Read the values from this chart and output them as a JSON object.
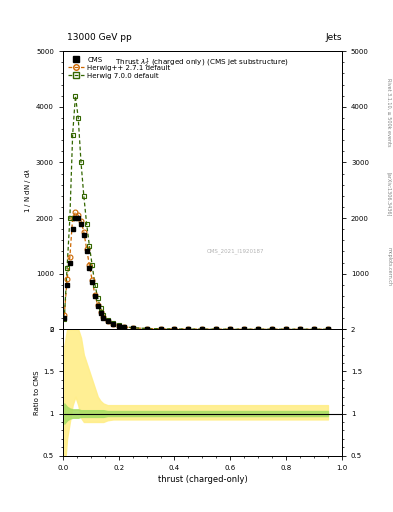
{
  "title_top": "13000 GeV pp",
  "title_right": "Jets",
  "plot_title": "Thrust $\\lambda_2^1$ (charged only) (CMS jet substructure)",
  "xlabel": "thrust (charged-only)",
  "ylabel": "$\\frac{1}{\\mathrm{N}} \\, / \\, \\frac{\\mathrm{d}\\mathrm{N}}{\\mathrm{d}\\lambda}$",
  "ylabel_ratio": "Ratio to CMS",
  "watermark": "CMS_2021_I1920187",
  "rivet_label": "Rivet 3.1.10, ≥ 500k events",
  "arxiv_label": "[arXiv:1306.3436]",
  "mcplots_label": "mcplots.cern.ch",
  "cms_x": [
    0.005,
    0.015,
    0.025,
    0.035,
    0.045,
    0.055,
    0.065,
    0.075,
    0.085,
    0.095,
    0.105,
    0.115,
    0.125,
    0.135,
    0.145,
    0.16,
    0.18,
    0.2,
    0.22,
    0.25,
    0.3,
    0.35,
    0.4,
    0.45,
    0.5,
    0.55,
    0.6,
    0.65,
    0.7,
    0.75,
    0.8,
    0.85,
    0.9,
    0.95
  ],
  "cms_y": [
    200,
    800,
    1200,
    1800,
    2000,
    2000,
    1900,
    1700,
    1400,
    1100,
    850,
    600,
    420,
    300,
    210,
    140,
    90,
    60,
    40,
    25,
    12,
    7,
    4.5,
    3,
    2,
    1.5,
    1.2,
    1.0,
    0.9,
    0.8,
    0.75,
    0.7,
    0.6,
    0.5
  ],
  "herwig271_x": [
    0.005,
    0.015,
    0.025,
    0.035,
    0.045,
    0.055,
    0.065,
    0.075,
    0.085,
    0.095,
    0.105,
    0.115,
    0.125,
    0.135,
    0.145,
    0.16,
    0.18,
    0.2,
    0.22,
    0.25,
    0.3,
    0.35,
    0.4,
    0.45,
    0.5,
    0.55,
    0.6,
    0.65,
    0.7,
    0.75,
    0.8,
    0.85,
    0.9,
    0.95
  ],
  "herwig271_y": [
    250,
    900,
    1300,
    2000,
    2100,
    2050,
    1950,
    1750,
    1450,
    1150,
    880,
    620,
    430,
    310,
    215,
    145,
    92,
    62,
    42,
    26,
    13,
    7.5,
    5,
    3.2,
    2.1,
    1.6,
    1.3,
    1.1,
    0.95,
    0.85,
    0.78,
    0.72,
    0.62,
    0.52
  ],
  "herwig700_x": [
    0.005,
    0.015,
    0.025,
    0.035,
    0.045,
    0.055,
    0.065,
    0.075,
    0.085,
    0.095,
    0.105,
    0.115,
    0.125,
    0.135,
    0.145,
    0.16,
    0.18,
    0.2,
    0.22,
    0.25,
    0.3,
    0.35,
    0.4,
    0.45,
    0.5,
    0.55,
    0.6,
    0.65,
    0.7,
    0.75,
    0.8,
    0.85,
    0.9,
    0.95
  ],
  "herwig700_y": [
    180,
    1100,
    2000,
    3500,
    4200,
    3800,
    3000,
    2400,
    1900,
    1500,
    1150,
    800,
    560,
    380,
    260,
    170,
    105,
    70,
    47,
    29,
    14,
    8.5,
    5.5,
    3.5,
    2.3,
    1.7,
    1.35,
    1.1,
    0.98,
    0.88,
    0.82,
    0.74,
    0.64,
    0.54
  ],
  "ylim_main": [
    0,
    5000
  ],
  "ylim_ratio": [
    0.5,
    2.0
  ],
  "xlim": [
    0.0,
    1.0
  ],
  "cms_color": "#000000",
  "herwig271_color": "#cc6600",
  "herwig700_color": "#336600",
  "herwig271_band_color": "#ffee88",
  "herwig700_band_color": "#aade66",
  "ratio_x": [
    0.005,
    0.015,
    0.025,
    0.035,
    0.045,
    0.055,
    0.065,
    0.075,
    0.085,
    0.095,
    0.105,
    0.115,
    0.125,
    0.135,
    0.145,
    0.16,
    0.18,
    0.2,
    0.22,
    0.25,
    0.3,
    0.35,
    0.4,
    0.45,
    0.5,
    0.55,
    0.6,
    0.65,
    0.7,
    0.75,
    0.8,
    0.85,
    0.9,
    0.95
  ],
  "ratio_h271_low": [
    0.88,
    0.92,
    0.94,
    0.95,
    0.95,
    0.95,
    0.96,
    0.96,
    0.96,
    0.96,
    0.96,
    0.96,
    0.96,
    0.96,
    0.96,
    0.97,
    0.97,
    0.97,
    0.97,
    0.97,
    0.97,
    0.97,
    0.97,
    0.97,
    0.97,
    0.97,
    0.97,
    0.97,
    0.97,
    0.97,
    0.97,
    0.97,
    0.97,
    0.97
  ],
  "ratio_h271_high": [
    1.12,
    1.08,
    1.06,
    1.05,
    1.05,
    1.05,
    1.04,
    1.04,
    1.04,
    1.04,
    1.04,
    1.04,
    1.04,
    1.04,
    1.04,
    1.03,
    1.03,
    1.03,
    1.03,
    1.03,
    1.03,
    1.03,
    1.03,
    1.03,
    1.03,
    1.03,
    1.03,
    1.03,
    1.03,
    1.03,
    1.03,
    1.03,
    1.03,
    1.03
  ],
  "ratio_h700_low": [
    0.3,
    0.7,
    0.9,
    1.1,
    1.2,
    1.1,
    0.95,
    0.9,
    0.9,
    0.9,
    0.9,
    0.9,
    0.9,
    0.9,
    0.9,
    0.92,
    0.93,
    0.93,
    0.93,
    0.93,
    0.93,
    0.93,
    0.93,
    0.93,
    0.93,
    0.93,
    0.93,
    0.93,
    0.93,
    0.93,
    0.93,
    0.93,
    0.93,
    0.93
  ],
  "ratio_h700_high": [
    1.8,
    2.0,
    2.0,
    2.0,
    2.0,
    2.0,
    1.9,
    1.7,
    1.6,
    1.5,
    1.4,
    1.3,
    1.2,
    1.15,
    1.12,
    1.1,
    1.1,
    1.1,
    1.1,
    1.1,
    1.1,
    1.1,
    1.1,
    1.1,
    1.1,
    1.1,
    1.1,
    1.1,
    1.1,
    1.1,
    1.1,
    1.1,
    1.1,
    1.1
  ]
}
